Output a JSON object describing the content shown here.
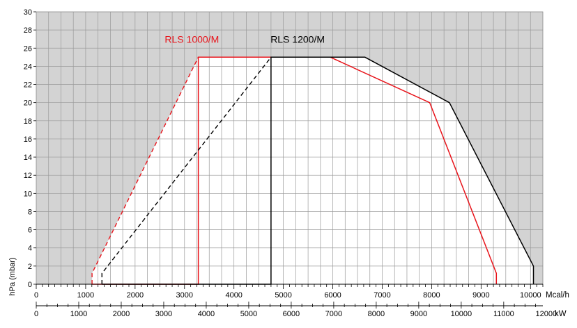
{
  "chart_data": {
    "type": "area",
    "ylabel": "hPa (mbar)",
    "ylim": [
      0,
      30
    ],
    "y_ticks": [
      0,
      2,
      4,
      6,
      8,
      10,
      12,
      14,
      16,
      18,
      20,
      22,
      24,
      26,
      28,
      30
    ],
    "x_unit": "Mcal/h",
    "x_range_mcal": [
      0,
      10250
    ],
    "x_ticks_mcal": [
      0,
      1000,
      2000,
      3000,
      4000,
      5000,
      6000,
      7000,
      8000,
      9000,
      10000
    ],
    "x2_unit": "kW",
    "x2_ticks_kw": [
      0,
      1000,
      2000,
      3000,
      4000,
      5000,
      6000,
      7000,
      8000,
      9000,
      10000,
      11000,
      12000
    ],
    "kw_per_mcal": 1.163,
    "grid": true,
    "background_outside_color": "#d3d3d3",
    "series": [
      {
        "name": "RLS 1000/M",
        "color": "#e8141b",
        "dashed_points": [
          [
            1130,
            0
          ],
          [
            1130,
            1.2
          ],
          [
            3280,
            25
          ]
        ],
        "solid_points": [
          [
            1130,
            0
          ],
          [
            3280,
            0
          ],
          [
            3280,
            25
          ],
          [
            5950,
            25
          ],
          [
            7960,
            20
          ],
          [
            9310,
            1.2
          ],
          [
            9310,
            0
          ]
        ],
        "label_at": [
          2600,
          26.6
        ]
      },
      {
        "name": "RLS 1200/M",
        "color": "#000000",
        "dashed_points": [
          [
            1330,
            0
          ],
          [
            1330,
            1.2
          ],
          [
            4750,
            25
          ]
        ],
        "solid_points": [
          [
            1330,
            0
          ],
          [
            4750,
            0
          ],
          [
            4750,
            25
          ],
          [
            6650,
            25
          ],
          [
            8360,
            20
          ],
          [
            10060,
            2
          ],
          [
            10060,
            0
          ]
        ],
        "label_at": [
          4740,
          26.6
        ]
      }
    ]
  }
}
